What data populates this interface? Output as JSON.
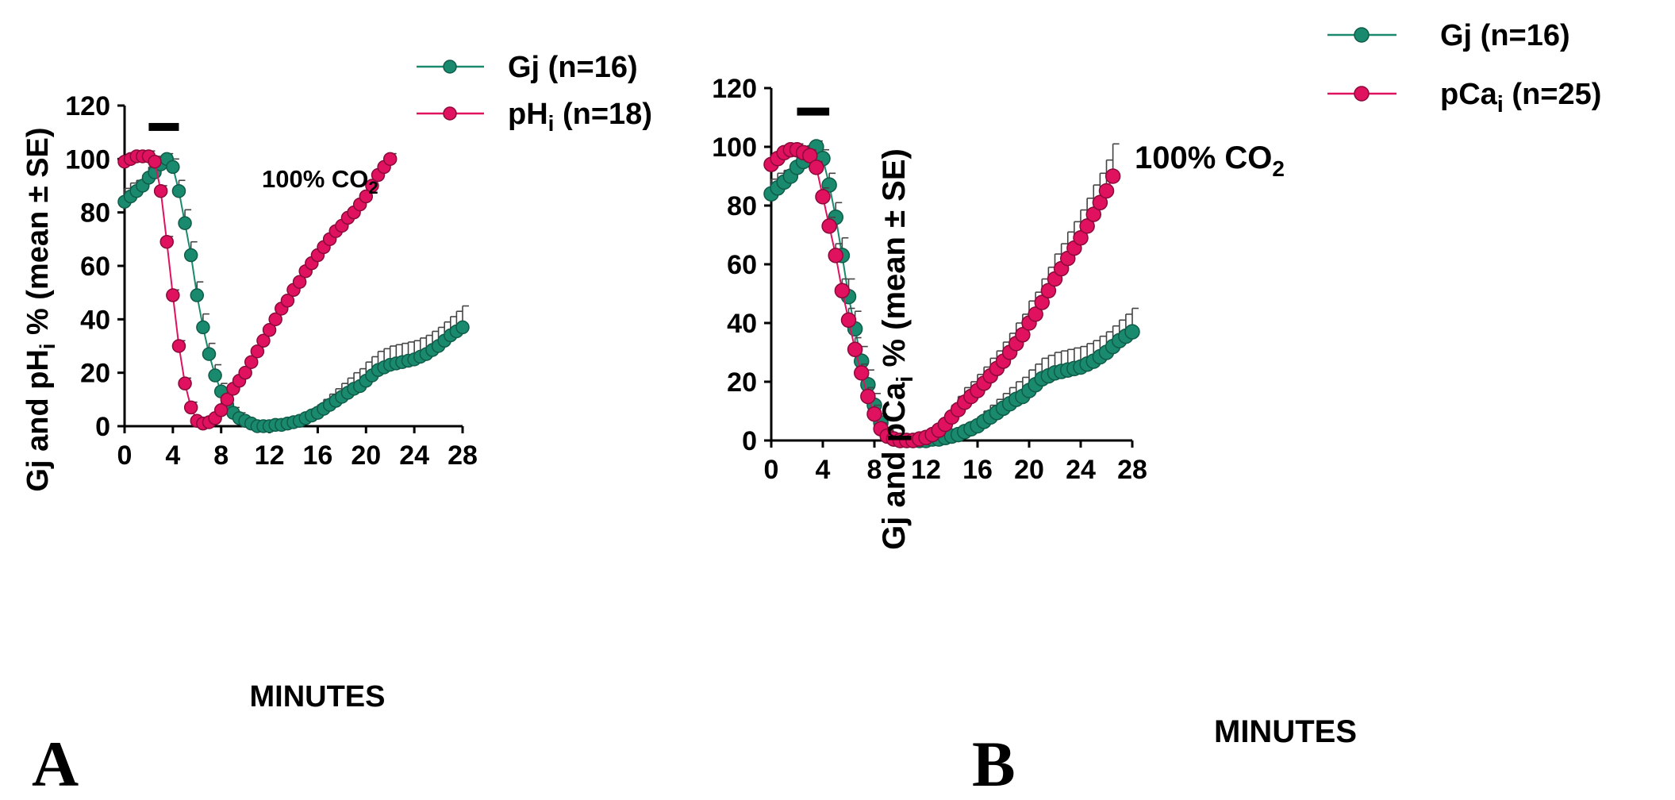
{
  "colors": {
    "gj": "#1a8a6e",
    "ph": "#e0115f",
    "pca": "#e0115f",
    "error_bar": "#444444",
    "axis": "#000000"
  },
  "panels": [
    {
      "letter": "A",
      "ylabel_main": "Gj and pH",
      "ylabel_sub": "i",
      "ylabel_tail": " % (mean ± SE)",
      "xlabel": "MINUTES",
      "annotation_main": "100% CO",
      "annotation_sub": "2",
      "legend": [
        {
          "main": "Gj (n=16)",
          "sub": "",
          "tail": ""
        },
        {
          "main": "pH",
          "sub": "i",
          "tail": " (n=18)"
        }
      ]
    },
    {
      "letter": "B",
      "ylabel_main": "Gj and pCa",
      "ylabel_sub": "i",
      "ylabel_tail": " % (mean ± SE)",
      "xlabel": "MINUTES",
      "annotation_main": "100% CO",
      "annotation_sub": "2",
      "legend": [
        {
          "main": "Gj (n=16)",
          "sub": "",
          "tail": ""
        },
        {
          "main": "pCa",
          "sub": "i",
          "tail": " (n=25)"
        }
      ]
    }
  ],
  "chart_data": [
    {
      "type": "line",
      "panel": "A",
      "xlabel": "MINUTES",
      "ylabel": "Gj and pHi % (mean ± SE)",
      "xlim": [
        0,
        28
      ],
      "ylim": [
        0,
        120
      ],
      "xticks": [
        0,
        4,
        8,
        12,
        16,
        20,
        24,
        28
      ],
      "yticks": [
        0,
        20,
        40,
        60,
        80,
        100,
        120
      ],
      "annotation": {
        "text": "100% CO2",
        "bar_x": [
          2,
          4.5
        ],
        "bar_y": 112
      },
      "legend_position": "top-right",
      "series": [
        {
          "name": "Gj (n=16)",
          "color_key": "gj",
          "x": [
            0,
            0.5,
            1,
            1.5,
            2,
            2.5,
            3,
            3.5,
            4,
            4.5,
            5,
            5.5,
            6,
            6.5,
            7,
            7.5,
            8,
            8.5,
            9,
            9.5,
            10,
            10.5,
            11,
            11.5,
            12,
            12.5,
            13,
            13.5,
            14,
            14.5,
            15,
            15.5,
            16,
            16.5,
            17,
            17.5,
            18,
            18.5,
            19,
            19.5,
            20,
            20.5,
            21,
            21.5,
            22,
            22.5,
            23,
            23.5,
            24,
            24.5,
            25,
            25.5,
            26,
            26.5,
            27,
            27.5,
            28
          ],
          "y": [
            84,
            86,
            88,
            90,
            93,
            95,
            98,
            100,
            97,
            88,
            76,
            64,
            49,
            37,
            27,
            19,
            13,
            8,
            5,
            3,
            2,
            1,
            0,
            0,
            0,
            0.5,
            0.5,
            1,
            1.5,
            2,
            3,
            4,
            5,
            6.5,
            8,
            9.5,
            11,
            12.5,
            14,
            15,
            17,
            19,
            21,
            22,
            23,
            23.5,
            24,
            24.5,
            25,
            26,
            27,
            28.5,
            30,
            32,
            34,
            35.5,
            37
          ],
          "err": [
            5,
            5,
            4,
            4,
            4,
            3,
            3,
            2,
            3,
            4,
            5,
            5,
            5,
            5,
            4,
            4,
            3,
            3,
            2,
            2,
            1,
            1,
            1,
            1,
            1,
            1,
            1,
            1,
            1.5,
            1.5,
            2,
            2.5,
            3,
            3.5,
            4,
            4.5,
            5,
            5.5,
            6,
            6.5,
            7,
            7,
            7,
            7,
            7,
            7,
            7,
            7,
            7,
            7,
            7,
            7,
            7,
            7,
            7,
            7.5,
            8
          ]
        },
        {
          "name": "pHi (n=18)",
          "color_key": "ph",
          "x": [
            0,
            0.5,
            1,
            1.5,
            2,
            2.5,
            3,
            3.5,
            4,
            4.5,
            5,
            5.5,
            6,
            6.5,
            7,
            7.5,
            8,
            8.5,
            9,
            9.5,
            10,
            10.5,
            11,
            11.5,
            12,
            12.5,
            13,
            13.5,
            14,
            14.5,
            15,
            15.5,
            16,
            16.5,
            17,
            17.5,
            18,
            18.5,
            19,
            19.5,
            20,
            20.5,
            21,
            21.5,
            22
          ],
          "y": [
            99,
            100,
            101,
            101,
            101,
            99,
            88,
            69,
            49,
            30,
            16,
            7,
            2,
            1,
            1.5,
            3,
            6,
            10,
            14,
            17,
            20,
            24,
            28,
            32,
            36,
            40,
            44,
            47,
            51,
            54,
            58,
            61,
            64,
            67,
            70,
            73,
            75,
            78,
            80,
            83,
            86,
            90,
            94,
            97,
            100
          ],
          "err": [
            2,
            2,
            2,
            2,
            2,
            2,
            2,
            2,
            2,
            2,
            2,
            2,
            1,
            1,
            1,
            1,
            2,
            2,
            2,
            2,
            2,
            2,
            2,
            2,
            2,
            2,
            2,
            2,
            2,
            2,
            2,
            2,
            2,
            2,
            2,
            2,
            2,
            2,
            2,
            2,
            2,
            2,
            2,
            2,
            2
          ]
        }
      ]
    },
    {
      "type": "line",
      "panel": "B",
      "xlabel": "MINUTES",
      "ylabel": "Gj and pCai % (mean ± SE)",
      "xlim": [
        0,
        28
      ],
      "ylim": [
        0,
        120
      ],
      "xticks": [
        0,
        4,
        8,
        12,
        16,
        20,
        24,
        28
      ],
      "yticks": [
        0,
        20,
        40,
        60,
        80,
        100,
        120
      ],
      "annotation": {
        "text": "100% CO2",
        "bar_x": [
          2,
          4.5
        ],
        "bar_y": 112
      },
      "legend_position": "top-right",
      "series": [
        {
          "name": "Gj (n=16)",
          "color_key": "gj",
          "x": [
            0,
            0.5,
            1,
            1.5,
            2,
            2.5,
            3,
            3.5,
            4,
            4.5,
            5,
            5.5,
            6,
            6.5,
            7,
            7.5,
            8,
            8.5,
            9,
            9.5,
            10,
            10.5,
            11,
            11.5,
            12,
            12.5,
            13,
            13.5,
            14,
            14.5,
            15,
            15.5,
            16,
            16.5,
            17,
            17.5,
            18,
            18.5,
            19,
            19.5,
            20,
            20.5,
            21,
            21.5,
            22,
            22.5,
            23,
            23.5,
            24,
            24.5,
            25,
            25.5,
            26,
            26.5,
            27,
            27.5,
            28
          ],
          "y": [
            84,
            86,
            88,
            90,
            93,
            95,
            98,
            100,
            96,
            87,
            76,
            63,
            49,
            38,
            27,
            19,
            12,
            6,
            2,
            0.5,
            0,
            0,
            0,
            0,
            0,
            0.5,
            0.5,
            1,
            1.5,
            2,
            3,
            4,
            5,
            6.5,
            8,
            9.5,
            11,
            12.5,
            14,
            15,
            17,
            19,
            21,
            22,
            23,
            23.5,
            24,
            24.5,
            25,
            26,
            27,
            28.5,
            30,
            32,
            34,
            35.5,
            37
          ],
          "err": [
            5,
            5,
            4,
            4,
            4,
            3,
            3,
            2,
            3,
            4,
            5,
            6,
            6,
            6,
            5,
            5,
            4,
            3,
            2,
            1,
            1,
            1,
            1,
            1,
            1,
            1,
            1,
            1,
            1.5,
            1.5,
            2,
            2.5,
            3,
            3.5,
            4,
            4.5,
            5,
            5.5,
            6,
            6.5,
            7,
            7,
            7,
            7,
            7,
            7,
            7,
            7,
            7,
            7,
            7,
            7,
            7,
            7,
            7,
            7.5,
            8
          ]
        },
        {
          "name": "pCai (n=25)",
          "color_key": "pca",
          "x": [
            0,
            0.5,
            1,
            1.5,
            2,
            2.5,
            3,
            3.5,
            4,
            4.5,
            5,
            5.5,
            6,
            6.5,
            7,
            7.5,
            8,
            8.5,
            9,
            9.5,
            10,
            10.5,
            11,
            11.5,
            12,
            12.5,
            13,
            13.5,
            14,
            14.5,
            15,
            15.5,
            16,
            16.5,
            17,
            17.5,
            18,
            18.5,
            19,
            19.5,
            20,
            20.5,
            21,
            21.5,
            22,
            22.5,
            23,
            23.5,
            24,
            24.5,
            25,
            25.5,
            26,
            26.5
          ],
          "y": [
            94,
            96,
            98,
            99,
            99,
            98,
            97,
            93,
            83,
            73,
            63,
            51,
            41,
            31,
            23,
            15,
            9,
            4,
            1.5,
            0.5,
            0,
            0,
            0,
            0.5,
            1,
            2,
            3.5,
            5.5,
            8,
            10.5,
            13,
            15,
            17,
            19.5,
            22,
            24.5,
            27,
            30,
            33,
            36,
            40,
            43,
            47,
            51,
            55,
            58.5,
            62,
            65.5,
            69,
            73,
            77,
            81,
            85,
            90
          ],
          "err": [
            2,
            2,
            2,
            2,
            2,
            2,
            2,
            2,
            3,
            3,
            4,
            4,
            4,
            4,
            3,
            3,
            3,
            2,
            2,
            1,
            1,
            1,
            1,
            1.5,
            2,
            2.5,
            3,
            3.5,
            4,
            4.5,
            5,
            5,
            5.5,
            5.5,
            6,
            6,
            6.5,
            6.5,
            7,
            7,
            7.5,
            7.5,
            8,
            8,
            8.5,
            8.5,
            9,
            9,
            9.5,
            9.5,
            10,
            10,
            10.5,
            11
          ]
        }
      ]
    }
  ]
}
